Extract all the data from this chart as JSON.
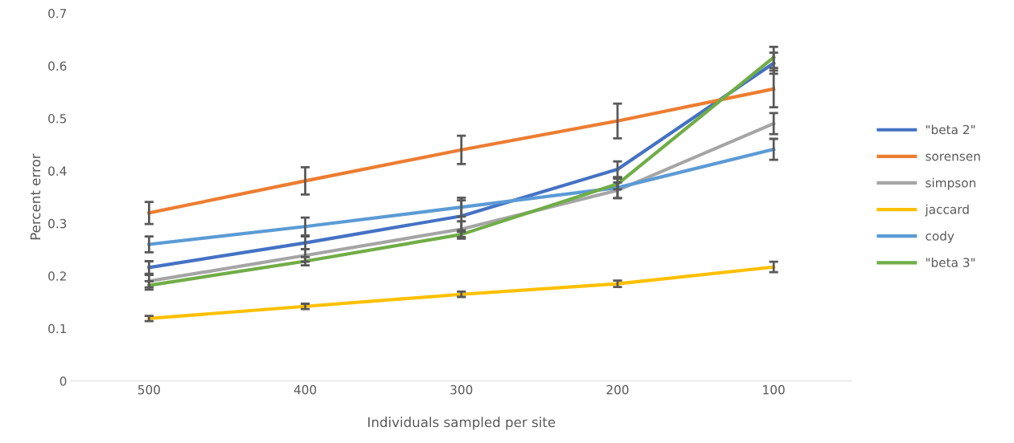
{
  "chart_data": {
    "type": "line",
    "xlabel": "Individuals sampled per site",
    "ylabel": "Percent error",
    "categories": [
      "500",
      "400",
      "300",
      "200",
      "100"
    ],
    "ylim": [
      0,
      0.7
    ],
    "yticks": [
      0,
      0.1,
      0.2,
      0.3,
      0.4,
      0.5,
      0.6,
      0.7
    ],
    "grid": false,
    "legend": "right",
    "marker": "none",
    "line_style": "solid",
    "series": [
      {
        "name": "\"beta 2\"",
        "color": "#4472c4",
        "values": [
          0.216,
          0.263,
          0.314,
          0.403,
          0.605
        ],
        "errors": [
          0.012,
          0.012,
          0.03,
          0.015,
          0.02
        ]
      },
      {
        "name": "sorensen",
        "color": "#ed7d31",
        "values": [
          0.32,
          0.381,
          0.44,
          0.495,
          0.556
        ],
        "errors": [
          0.021,
          0.026,
          0.027,
          0.033,
          0.035
        ]
      },
      {
        "name": "simpson",
        "color": "#a5a5a5",
        "values": [
          0.19,
          0.239,
          0.289,
          0.363,
          0.49
        ],
        "errors": [
          0.012,
          0.012,
          0.015,
          0.015,
          0.02
        ]
      },
      {
        "name": "jaccard",
        "color": "#ffc000",
        "values": [
          0.119,
          0.142,
          0.165,
          0.185,
          0.217
        ],
        "errors": [
          0.005,
          0.005,
          0.005,
          0.006,
          0.01
        ]
      },
      {
        "name": "cody",
        "color": "#5b9bd5",
        "values": [
          0.26,
          0.294,
          0.331,
          0.368,
          0.441
        ],
        "errors": [
          0.015,
          0.017,
          0.018,
          0.02,
          0.02
        ]
      },
      {
        "name": "\"beta 3\"",
        "color": "#70ad47",
        "values": [
          0.182,
          0.228,
          0.279,
          0.375,
          0.616
        ],
        "errors": [
          0.008,
          0.008,
          0.008,
          0.01,
          0.02
        ]
      }
    ]
  }
}
